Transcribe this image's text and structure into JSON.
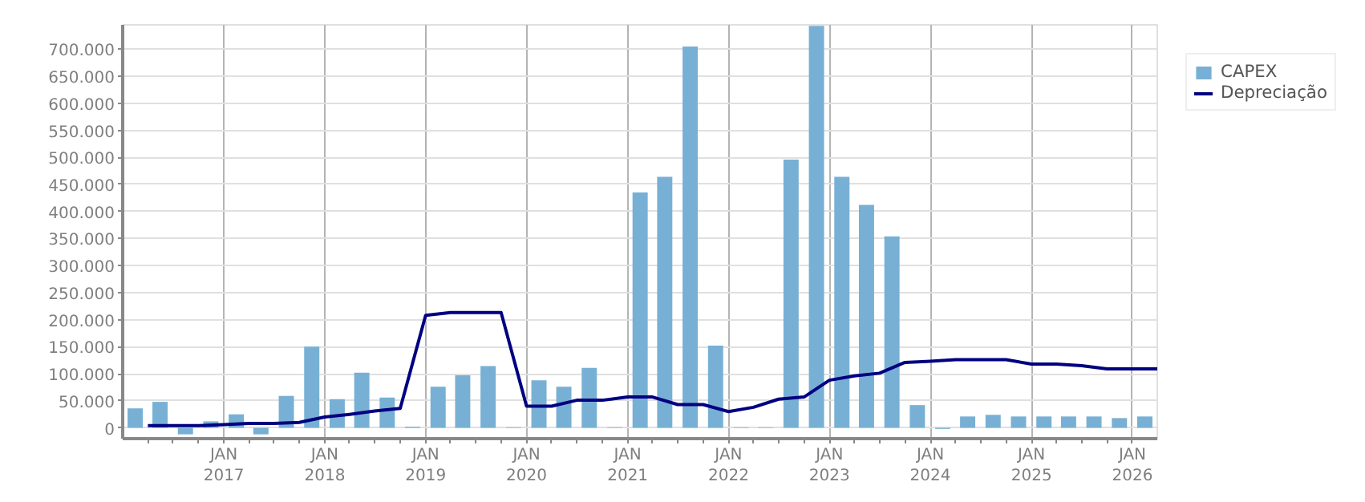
{
  "chart_data": {
    "type": "bar",
    "x": [
      "2016-02-15",
      "2016-05-15",
      "2016-08-15",
      "2016-11-15",
      "2017-02-15",
      "2017-05-15",
      "2017-08-15",
      "2017-11-15",
      "2018-02-15",
      "2018-05-15",
      "2018-08-15",
      "2018-11-15",
      "2019-02-15",
      "2019-05-15",
      "2019-08-15",
      "2019-11-15",
      "2020-02-15",
      "2020-05-15",
      "2020-08-15",
      "2020-11-15",
      "2021-02-15",
      "2021-05-15",
      "2021-08-15",
      "2021-11-15",
      "2022-02-15",
      "2022-05-15",
      "2022-08-15",
      "2022-11-15",
      "2023-02-15",
      "2023-05-15",
      "2023-08-15",
      "2023-11-15",
      "2024-02-15",
      "2024-05-15",
      "2024-08-15",
      "2024-11-15",
      "2025-02-15",
      "2025-05-15",
      "2025-08-15",
      "2025-11-15",
      "2026-02-15"
    ],
    "series": [
      {
        "name": "CAPEX",
        "color": "#77b0d4",
        "values": [
          36000,
          48000,
          -12000,
          12000,
          25000,
          -12000,
          59000,
          150000,
          53000,
          102000,
          56000,
          2000,
          76000,
          97000,
          114000,
          1000,
          88000,
          76000,
          111000,
          1000,
          435000,
          464000,
          705000,
          152000,
          1000,
          1000,
          496000,
          743000,
          464000,
          412000,
          354000,
          42000,
          -2000,
          21000,
          24000,
          21000,
          21000,
          21000,
          21000,
          18000,
          21000
        ]
      },
      {
        "name": "Depreciação",
        "type": "line",
        "color": "#000080",
        "x": [
          "2016-04-01",
          "2016-07-01",
          "2016-10-01",
          "2017-01-01",
          "2017-04-01",
          "2017-07-01",
          "2017-10-01",
          "2018-01-01",
          "2018-04-01",
          "2018-07-01",
          "2018-10-01",
          "2019-01-01",
          "2019-04-01",
          "2019-07-01",
          "2019-10-01",
          "2020-01-01",
          "2020-04-01",
          "2020-07-01",
          "2020-10-01",
          "2021-01-01",
          "2021-04-01",
          "2021-07-01",
          "2021-10-01",
          "2022-01-01",
          "2022-04-01",
          "2022-07-01",
          "2022-10-01",
          "2023-01-01",
          "2023-04-01",
          "2023-07-01",
          "2023-10-01",
          "2024-01-01",
          "2024-04-01",
          "2024-07-01",
          "2024-10-01",
          "2025-01-01",
          "2025-04-01",
          "2025-07-01",
          "2025-10-01",
          "2026-01-01",
          "2026-04-01"
        ],
        "values": [
          4000,
          4000,
          4000,
          6000,
          8000,
          8000,
          10000,
          20000,
          25000,
          31000,
          36000,
          208000,
          213000,
          213000,
          213000,
          40000,
          40000,
          51000,
          51000,
          57000,
          57000,
          43000,
          43000,
          30000,
          38000,
          53000,
          57000,
          88000,
          96000,
          101000,
          121000,
          123000,
          126000,
          126000,
          126000,
          118000,
          118000,
          115000,
          109000,
          109000,
          109000
        ]
      }
    ],
    "xlim": [
      "2016-01-01",
      "2026-04-01"
    ],
    "xticks": [
      {
        "value": "2016-04-01",
        "label": null
      },
      {
        "value": "2016-07-01",
        "label": null
      },
      {
        "value": "2016-10-01",
        "label": null
      },
      {
        "value": "2017-01-01",
        "label": "JAN\n2017"
      },
      {
        "value": "2017-04-01",
        "label": null
      },
      {
        "value": "2017-07-01",
        "label": null
      },
      {
        "value": "2017-10-01",
        "label": null
      },
      {
        "value": "2018-01-01",
        "label": "JAN\n2018"
      },
      {
        "value": "2018-04-01",
        "label": null
      },
      {
        "value": "2018-07-01",
        "label": null
      },
      {
        "value": "2018-10-01",
        "label": null
      },
      {
        "value": "2019-01-01",
        "label": "JAN\n2019"
      },
      {
        "value": "2019-04-01",
        "label": null
      },
      {
        "value": "2019-07-01",
        "label": null
      },
      {
        "value": "2019-10-01",
        "label": null
      },
      {
        "value": "2020-01-01",
        "label": "JAN\n2020"
      },
      {
        "value": "2020-04-01",
        "label": null
      },
      {
        "value": "2020-07-01",
        "label": null
      },
      {
        "value": "2020-10-01",
        "label": null
      },
      {
        "value": "2021-01-01",
        "label": "JAN\n2021"
      },
      {
        "value": "2021-04-01",
        "label": null
      },
      {
        "value": "2021-07-01",
        "label": null
      },
      {
        "value": "2021-10-01",
        "label": null
      },
      {
        "value": "2022-01-01",
        "label": "JAN\n2022"
      },
      {
        "value": "2022-04-01",
        "label": null
      },
      {
        "value": "2022-07-01",
        "label": null
      },
      {
        "value": "2022-10-01",
        "label": null
      },
      {
        "value": "2023-01-01",
        "label": "JAN\n2023"
      },
      {
        "value": "2023-04-01",
        "label": null
      },
      {
        "value": "2023-07-01",
        "label": null
      },
      {
        "value": "2023-10-01",
        "label": null
      },
      {
        "value": "2024-01-01",
        "label": "JAN\n2024"
      },
      {
        "value": "2024-04-01",
        "label": null
      },
      {
        "value": "2024-07-01",
        "label": null
      },
      {
        "value": "2024-10-01",
        "label": null
      },
      {
        "value": "2025-01-01",
        "label": "JAN\n2025"
      },
      {
        "value": "2025-04-01",
        "label": null
      },
      {
        "value": "2025-07-01",
        "label": null
      },
      {
        "value": "2025-10-01",
        "label": null
      },
      {
        "value": "2026-01-01",
        "label": "JAN\n2026"
      }
    ],
    "ylim": [
      -20000,
      745000
    ],
    "yticks": [
      0,
      {
        "value": 50000,
        "label": "50.000"
      },
      {
        "value": 100000,
        "label": "100.000"
      },
      {
        "value": 150000,
        "label": "150.000"
      },
      {
        "value": 200000,
        "label": "200.000"
      },
      {
        "value": 250000,
        "label": "250.000"
      },
      {
        "value": 300000,
        "label": "300.000"
      },
      {
        "value": 350000,
        "label": "350.000"
      },
      {
        "value": 400000,
        "label": "400.000"
      },
      {
        "value": 450000,
        "label": "450.000"
      },
      {
        "value": 500000,
        "label": "500.000"
      },
      {
        "value": 550000,
        "label": "550.000"
      },
      {
        "value": 600000,
        "label": "600.000"
      },
      {
        "value": 650000,
        "label": "650.000"
      },
      {
        "value": 700000,
        "label": "700.000"
      }
    ],
    "grid": true,
    "legend": "top right",
    "marker": "none",
    "line_style": "solid"
  }
}
